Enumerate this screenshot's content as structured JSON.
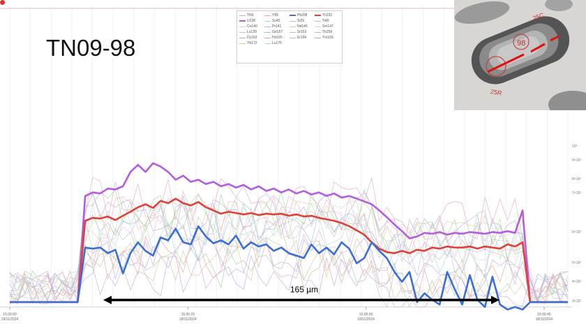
{
  "sample_name": "TN09-98",
  "scale_bar_label": "165 µm",
  "colors": {
    "U238": "#b35de0",
    "Th232": "#e0403a",
    "Pb208": "#3b6fd6",
    "scale_bar": "#000000",
    "inset_marker": "#e01010",
    "inset_pen": "#c8302f"
  },
  "inset": {
    "description_icon": "zircon-photo",
    "labels": [
      "98",
      "25C",
      "25R"
    ]
  },
  "chart_data": {
    "type": "line",
    "x_ticks": [
      {
        "t": 0,
        "time": "15:00:00",
        "date": "18/11/2024"
      },
      {
        "t": 15,
        "time": "15:00:15",
        "date": "18/11/2024"
      },
      {
        "t": 30,
        "time": "15:00:30",
        "date": "18/11/2024"
      },
      {
        "t": 45,
        "time": "15:00:45",
        "date": "18/11/2024"
      }
    ],
    "xlim": [
      0,
      47
    ],
    "y_scale": "log",
    "ylim": [
      280,
      12000
    ],
    "y_ticks": [
      {
        "v": 300,
        "label": "3×10²"
      },
      {
        "v": 400,
        "label": "4×10²"
      },
      {
        "v": 500,
        "label": "5×10²"
      },
      {
        "v": 600,
        "label": "6×10²"
      },
      {
        "v": 700,
        "label": "7×10²"
      },
      {
        "v": 800,
        "label": "8×10²"
      },
      {
        "v": 900,
        "label": "9×10²"
      },
      {
        "v": 1000,
        "label": "10³"
      }
    ],
    "legend_placement": "top-center",
    "legend": [
      "Ti50",
      "Y89",
      "Pb208",
      "Th232",
      "U238",
      "Sc45",
      "Si29",
      "Ti49",
      "Ce140",
      "Pr141",
      "Nd146",
      "Sm147",
      "Lu139",
      "Gd157",
      "Sr153",
      "Tb159",
      "Dy163",
      "Ho165",
      "Er166",
      "Tm169",
      "Yb172",
      "Lu175"
    ],
    "series": [
      {
        "name": "U238",
        "emphasis": true,
        "values": [
          300,
          300,
          300,
          300,
          300,
          300,
          300,
          300,
          300,
          300,
          1350,
          1420,
          1400,
          1500,
          1480,
          1550,
          1900,
          2100,
          1900,
          2150,
          2050,
          1900,
          1700,
          1800,
          1650,
          1700,
          1600,
          1650,
          1550,
          1600,
          1520,
          1580,
          1480,
          1550,
          1450,
          1500,
          1420,
          1480,
          1400,
          1450,
          1380,
          1420,
          1350,
          1400,
          1320,
          1350,
          1300,
          1250,
          1200,
          1100,
          1000,
          900,
          820,
          740,
          760,
          800,
          790,
          810,
          780,
          800,
          790,
          810,
          800,
          790,
          810,
          800,
          820,
          800,
          1100,
          300,
          300,
          300,
          300,
          300,
          300
        ]
      },
      {
        "name": "Th232",
        "emphasis": true,
        "values": [
          300,
          300,
          300,
          300,
          300,
          300,
          300,
          300,
          300,
          300,
          950,
          990,
          980,
          1010,
          960,
          1020,
          1080,
          1150,
          1200,
          1140,
          1260,
          1220,
          1300,
          1220,
          1180,
          1240,
          1150,
          1100,
          1050,
          1080,
          1060,
          1040,
          1060,
          1030,
          1050,
          1040,
          1050,
          1020,
          1040,
          1010,
          1020,
          990,
          970,
          950,
          920,
          880,
          830,
          780,
          700,
          640,
          610,
          600,
          620,
          600,
          630,
          620,
          650,
          640,
          660,
          650,
          650,
          660,
          640,
          660,
          650,
          640,
          680,
          660,
          700,
          300,
          300,
          300,
          300,
          300,
          300
        ]
      },
      {
        "name": "Pb208",
        "emphasis": true,
        "values": [
          300,
          300,
          300,
          300,
          300,
          300,
          300,
          300,
          300,
          300,
          650,
          640,
          650,
          600,
          630,
          450,
          600,
          700,
          620,
          580,
          750,
          720,
          850,
          700,
          680,
          880,
          760,
          690,
          720,
          680,
          770,
          640,
          700,
          660,
          680,
          620,
          650,
          600,
          580,
          560,
          680,
          600,
          650,
          590,
          700,
          640,
          520,
          560,
          700,
          620,
          560,
          460,
          400,
          460,
          300,
          340,
          310,
          290,
          460,
          360,
          290,
          440,
          310,
          280,
          430,
          290,
          270,
          280,
          270,
          300,
          300,
          300,
          300,
          300,
          300
        ]
      }
    ]
  }
}
